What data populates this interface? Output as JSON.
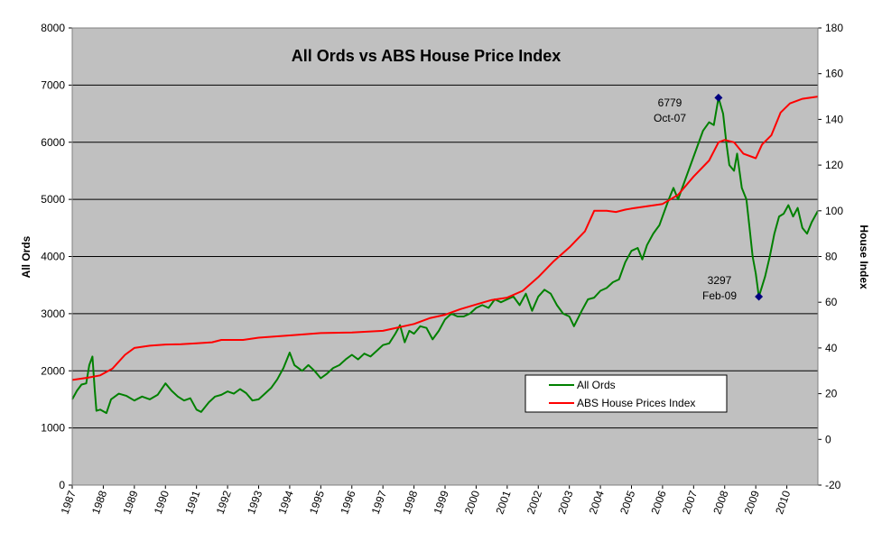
{
  "chart_data": {
    "type": "line",
    "title": "All Ords vs ABS House Price Index",
    "ylabel": "All Ords",
    "y2label": "House Index",
    "ylim": [
      0,
      8000
    ],
    "y2lim": [
      -20,
      180
    ],
    "xlim": [
      1987,
      2011
    ],
    "yticks": [
      0,
      1000,
      2000,
      3000,
      4000,
      5000,
      6000,
      7000,
      8000
    ],
    "y2ticks": [
      -20,
      0,
      20,
      40,
      60,
      80,
      100,
      120,
      140,
      160,
      180
    ],
    "xticks": [
      1987,
      1988,
      1989,
      1990,
      1991,
      1992,
      1993,
      1994,
      1995,
      1996,
      1997,
      1998,
      1999,
      2000,
      2001,
      2002,
      2003,
      2004,
      2005,
      2006,
      2007,
      2008,
      2009,
      2010
    ],
    "grid": "horizontal",
    "legend_position": "lower-right",
    "colors": {
      "plot_bg": "#c0c0c0",
      "all_ords": "#008000",
      "house": "#ff0000",
      "marker": "#000080"
    },
    "series": [
      {
        "name": "All Ords",
        "axis": "left",
        "points": [
          [
            1987.0,
            1500
          ],
          [
            1987.15,
            1650
          ],
          [
            1987.3,
            1760
          ],
          [
            1987.45,
            1780
          ],
          [
            1987.55,
            2100
          ],
          [
            1987.65,
            2250
          ],
          [
            1987.72,
            1700
          ],
          [
            1987.78,
            1300
          ],
          [
            1987.9,
            1320
          ],
          [
            1988.1,
            1260
          ],
          [
            1988.25,
            1500
          ],
          [
            1988.5,
            1600
          ],
          [
            1988.75,
            1560
          ],
          [
            1989.0,
            1480
          ],
          [
            1989.25,
            1550
          ],
          [
            1989.5,
            1500
          ],
          [
            1989.75,
            1580
          ],
          [
            1990.0,
            1780
          ],
          [
            1990.2,
            1650
          ],
          [
            1990.4,
            1550
          ],
          [
            1990.6,
            1480
          ],
          [
            1990.8,
            1520
          ],
          [
            1991.0,
            1320
          ],
          [
            1991.15,
            1280
          ],
          [
            1991.4,
            1450
          ],
          [
            1991.6,
            1550
          ],
          [
            1991.8,
            1580
          ],
          [
            1992.0,
            1640
          ],
          [
            1992.2,
            1600
          ],
          [
            1992.4,
            1680
          ],
          [
            1992.6,
            1610
          ],
          [
            1992.8,
            1480
          ],
          [
            1993.0,
            1500
          ],
          [
            1993.2,
            1600
          ],
          [
            1993.4,
            1700
          ],
          [
            1993.6,
            1850
          ],
          [
            1993.8,
            2050
          ],
          [
            1994.0,
            2320
          ],
          [
            1994.15,
            2100
          ],
          [
            1994.4,
            2000
          ],
          [
            1994.6,
            2100
          ],
          [
            1994.8,
            2000
          ],
          [
            1995.0,
            1870
          ],
          [
            1995.2,
            1950
          ],
          [
            1995.4,
            2050
          ],
          [
            1995.6,
            2100
          ],
          [
            1995.8,
            2200
          ],
          [
            1996.0,
            2280
          ],
          [
            1996.2,
            2200
          ],
          [
            1996.4,
            2300
          ],
          [
            1996.6,
            2250
          ],
          [
            1996.8,
            2350
          ],
          [
            1997.0,
            2450
          ],
          [
            1997.2,
            2480
          ],
          [
            1997.4,
            2650
          ],
          [
            1997.55,
            2800
          ],
          [
            1997.7,
            2500
          ],
          [
            1997.85,
            2700
          ],
          [
            1998.0,
            2650
          ],
          [
            1998.2,
            2780
          ],
          [
            1998.4,
            2750
          ],
          [
            1998.6,
            2550
          ],
          [
            1998.8,
            2700
          ],
          [
            1999.0,
            2900
          ],
          [
            1999.2,
            3000
          ],
          [
            1999.4,
            2950
          ],
          [
            1999.6,
            2950
          ],
          [
            1999.8,
            3000
          ],
          [
            2000.0,
            3100
          ],
          [
            2000.2,
            3150
          ],
          [
            2000.4,
            3100
          ],
          [
            2000.6,
            3250
          ],
          [
            2000.8,
            3200
          ],
          [
            2001.0,
            3250
          ],
          [
            2001.2,
            3300
          ],
          [
            2001.4,
            3150
          ],
          [
            2001.6,
            3350
          ],
          [
            2001.8,
            3050
          ],
          [
            2002.0,
            3300
          ],
          [
            2002.2,
            3420
          ],
          [
            2002.4,
            3350
          ],
          [
            2002.6,
            3150
          ],
          [
            2002.8,
            3000
          ],
          [
            2003.0,
            2950
          ],
          [
            2003.15,
            2780
          ],
          [
            2003.4,
            3050
          ],
          [
            2003.6,
            3250
          ],
          [
            2003.8,
            3280
          ],
          [
            2004.0,
            3400
          ],
          [
            2004.2,
            3450
          ],
          [
            2004.4,
            3550
          ],
          [
            2004.6,
            3600
          ],
          [
            2004.8,
            3900
          ],
          [
            2005.0,
            4100
          ],
          [
            2005.2,
            4150
          ],
          [
            2005.35,
            3950
          ],
          [
            2005.5,
            4200
          ],
          [
            2005.7,
            4400
          ],
          [
            2005.9,
            4550
          ],
          [
            2006.0,
            4700
          ],
          [
            2006.2,
            5000
          ],
          [
            2006.35,
            5200
          ],
          [
            2006.5,
            5000
          ],
          [
            2006.7,
            5300
          ],
          [
            2006.9,
            5600
          ],
          [
            2007.1,
            5900
          ],
          [
            2007.3,
            6200
          ],
          [
            2007.5,
            6350
          ],
          [
            2007.65,
            6300
          ],
          [
            2007.8,
            6779
          ],
          [
            2007.95,
            6500
          ],
          [
            2008.05,
            6000
          ],
          [
            2008.15,
            5600
          ],
          [
            2008.3,
            5500
          ],
          [
            2008.4,
            5800
          ],
          [
            2008.55,
            5200
          ],
          [
            2008.7,
            5000
          ],
          [
            2008.8,
            4500
          ],
          [
            2008.9,
            4000
          ],
          [
            2009.0,
            3700
          ],
          [
            2009.1,
            3297
          ],
          [
            2009.3,
            3650
          ],
          [
            2009.45,
            4000
          ],
          [
            2009.6,
            4400
          ],
          [
            2009.75,
            4700
          ],
          [
            2009.9,
            4750
          ],
          [
            2010.05,
            4900
          ],
          [
            2010.2,
            4700
          ],
          [
            2010.35,
            4850
          ],
          [
            2010.5,
            4500
          ],
          [
            2010.65,
            4400
          ],
          [
            2010.8,
            4600
          ],
          [
            2010.95,
            4750
          ],
          [
            2011.0,
            4800
          ]
        ]
      },
      {
        "name": "ABS House Prices Index",
        "axis": "right",
        "points": [
          [
            1987.0,
            26
          ],
          [
            1987.5,
            27
          ],
          [
            1987.9,
            28
          ],
          [
            1988.3,
            31
          ],
          [
            1988.7,
            37
          ],
          [
            1989.0,
            40
          ],
          [
            1989.5,
            41
          ],
          [
            1990.0,
            41.5
          ],
          [
            1990.5,
            41.6
          ],
          [
            1991.0,
            42
          ],
          [
            1991.5,
            42.5
          ],
          [
            1991.8,
            43.5
          ],
          [
            1992.5,
            43.5
          ],
          [
            1993.0,
            44.5
          ],
          [
            1994.0,
            45.5
          ],
          [
            1995.0,
            46.5
          ],
          [
            1996.0,
            46.8
          ],
          [
            1997.0,
            47.5
          ],
          [
            1997.5,
            49
          ],
          [
            1998.0,
            50.5
          ],
          [
            1998.5,
            53
          ],
          [
            1999.0,
            54.5
          ],
          [
            1999.5,
            57
          ],
          [
            2000.0,
            59
          ],
          [
            2000.5,
            61
          ],
          [
            2001.0,
            62
          ],
          [
            2001.5,
            65
          ],
          [
            2002.0,
            71
          ],
          [
            2002.5,
            78
          ],
          [
            2003.0,
            84
          ],
          [
            2003.5,
            91
          ],
          [
            2003.8,
            100
          ],
          [
            2004.2,
            100
          ],
          [
            2004.5,
            99.5
          ],
          [
            2004.8,
            100.5
          ],
          [
            2005.0,
            101
          ],
          [
            2005.5,
            102
          ],
          [
            2006.0,
            103
          ],
          [
            2006.5,
            107
          ],
          [
            2007.0,
            115
          ],
          [
            2007.5,
            122
          ],
          [
            2007.8,
            130
          ],
          [
            2008.0,
            131
          ],
          [
            2008.3,
            130
          ],
          [
            2008.6,
            125
          ],
          [
            2009.0,
            123
          ],
          [
            2009.2,
            129
          ],
          [
            2009.5,
            133
          ],
          [
            2009.8,
            143
          ],
          [
            2010.1,
            147
          ],
          [
            2010.5,
            149
          ],
          [
            2011.0,
            150
          ]
        ]
      }
    ],
    "annotations": [
      {
        "value": "6779",
        "date": "Oct-07",
        "x": 2007.8,
        "y": 6779
      },
      {
        "value": "3297",
        "date": "Feb-09",
        "x": 2009.1,
        "y": 3297
      }
    ]
  }
}
